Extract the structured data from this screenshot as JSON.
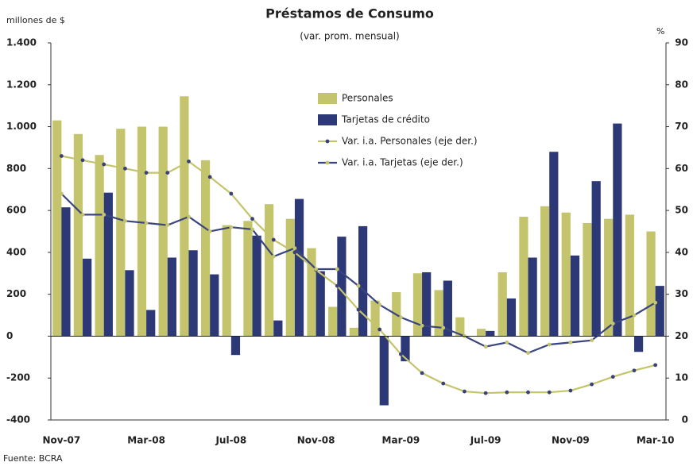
{
  "chart_data": {
    "type": "combo",
    "title": "Préstamos de Consumo",
    "subtitle": "(var. prom. mensual)",
    "y_label": "millones de $",
    "y2_label": "%",
    "source": "Fuente: BCRA",
    "legend": "top",
    "categories": [
      "Nov-07",
      null,
      null,
      null,
      "Mar-08",
      null,
      null,
      null,
      "Jul-08",
      null,
      null,
      null,
      "Nov-08",
      null,
      null,
      null,
      "Mar-09",
      null,
      null,
      null,
      "Jul-09",
      null,
      null,
      null,
      "Nov-09",
      null,
      null,
      null,
      "Mar-10"
    ],
    "series": [
      {
        "name": "Personales",
        "type": "bar",
        "color": "#c3c46c",
        "values": [
          1030,
          965,
          865,
          990,
          1000,
          1000,
          1145,
          840,
          530,
          550,
          630,
          560,
          420,
          140,
          40,
          170,
          210,
          300,
          220,
          90,
          35,
          305,
          570,
          620,
          590,
          540,
          560,
          580,
          500
        ]
      },
      {
        "name": "Tarjetas de crédito",
        "type": "bar",
        "color": "#2d3877",
        "values": [
          615,
          370,
          685,
          315,
          125,
          375,
          410,
          295,
          -90,
          480,
          75,
          655,
          310,
          475,
          525,
          -330,
          -120,
          305,
          265,
          0,
          25,
          180,
          375,
          880,
          385,
          740,
          1015,
          -75,
          240
        ]
      },
      {
        "name": "Var. i.a. Personales (eje der.)",
        "type": "line",
        "axis": "y2",
        "color": "#c3c46c",
        "marker_color": "#3a4275",
        "values": [
          63,
          62,
          61,
          60,
          59,
          59,
          61.7,
          58,
          54,
          48,
          43,
          40,
          35.8,
          32,
          26.3,
          21.6,
          15.7,
          11.2,
          8.7,
          6.8,
          6.4,
          6.6,
          6.6,
          6.6,
          7,
          8.5,
          10.3,
          11.8,
          13.1
        ]
      },
      {
        "name": "Var. i.a. Tarjetas (eje der.)",
        "type": "line",
        "axis": "y2",
        "color": "#3a4580",
        "marker_color": "#c3c46c",
        "values": [
          54,
          49,
          49,
          47.5,
          47,
          46.5,
          48.5,
          45,
          46,
          45.5,
          39,
          41,
          36,
          36,
          32,
          27.5,
          24.5,
          22.5,
          22,
          20,
          17.5,
          18.5,
          16,
          18,
          18.5,
          19,
          23,
          25,
          28
        ]
      }
    ],
    "ylim": [
      -400,
      1400
    ],
    "yticks": [
      -400,
      -200,
      0,
      200,
      400,
      600,
      800,
      {
        "value": 1000,
        "label": "1.000"
      },
      {
        "value": 1200,
        "label": "1.200"
      },
      {
        "value": 1400,
        "label": "1.400"
      }
    ],
    "y2lim": [
      0,
      90
    ],
    "y2ticks": [
      0,
      10,
      20,
      30,
      40,
      50,
      60,
      70,
      80,
      90
    ]
  }
}
